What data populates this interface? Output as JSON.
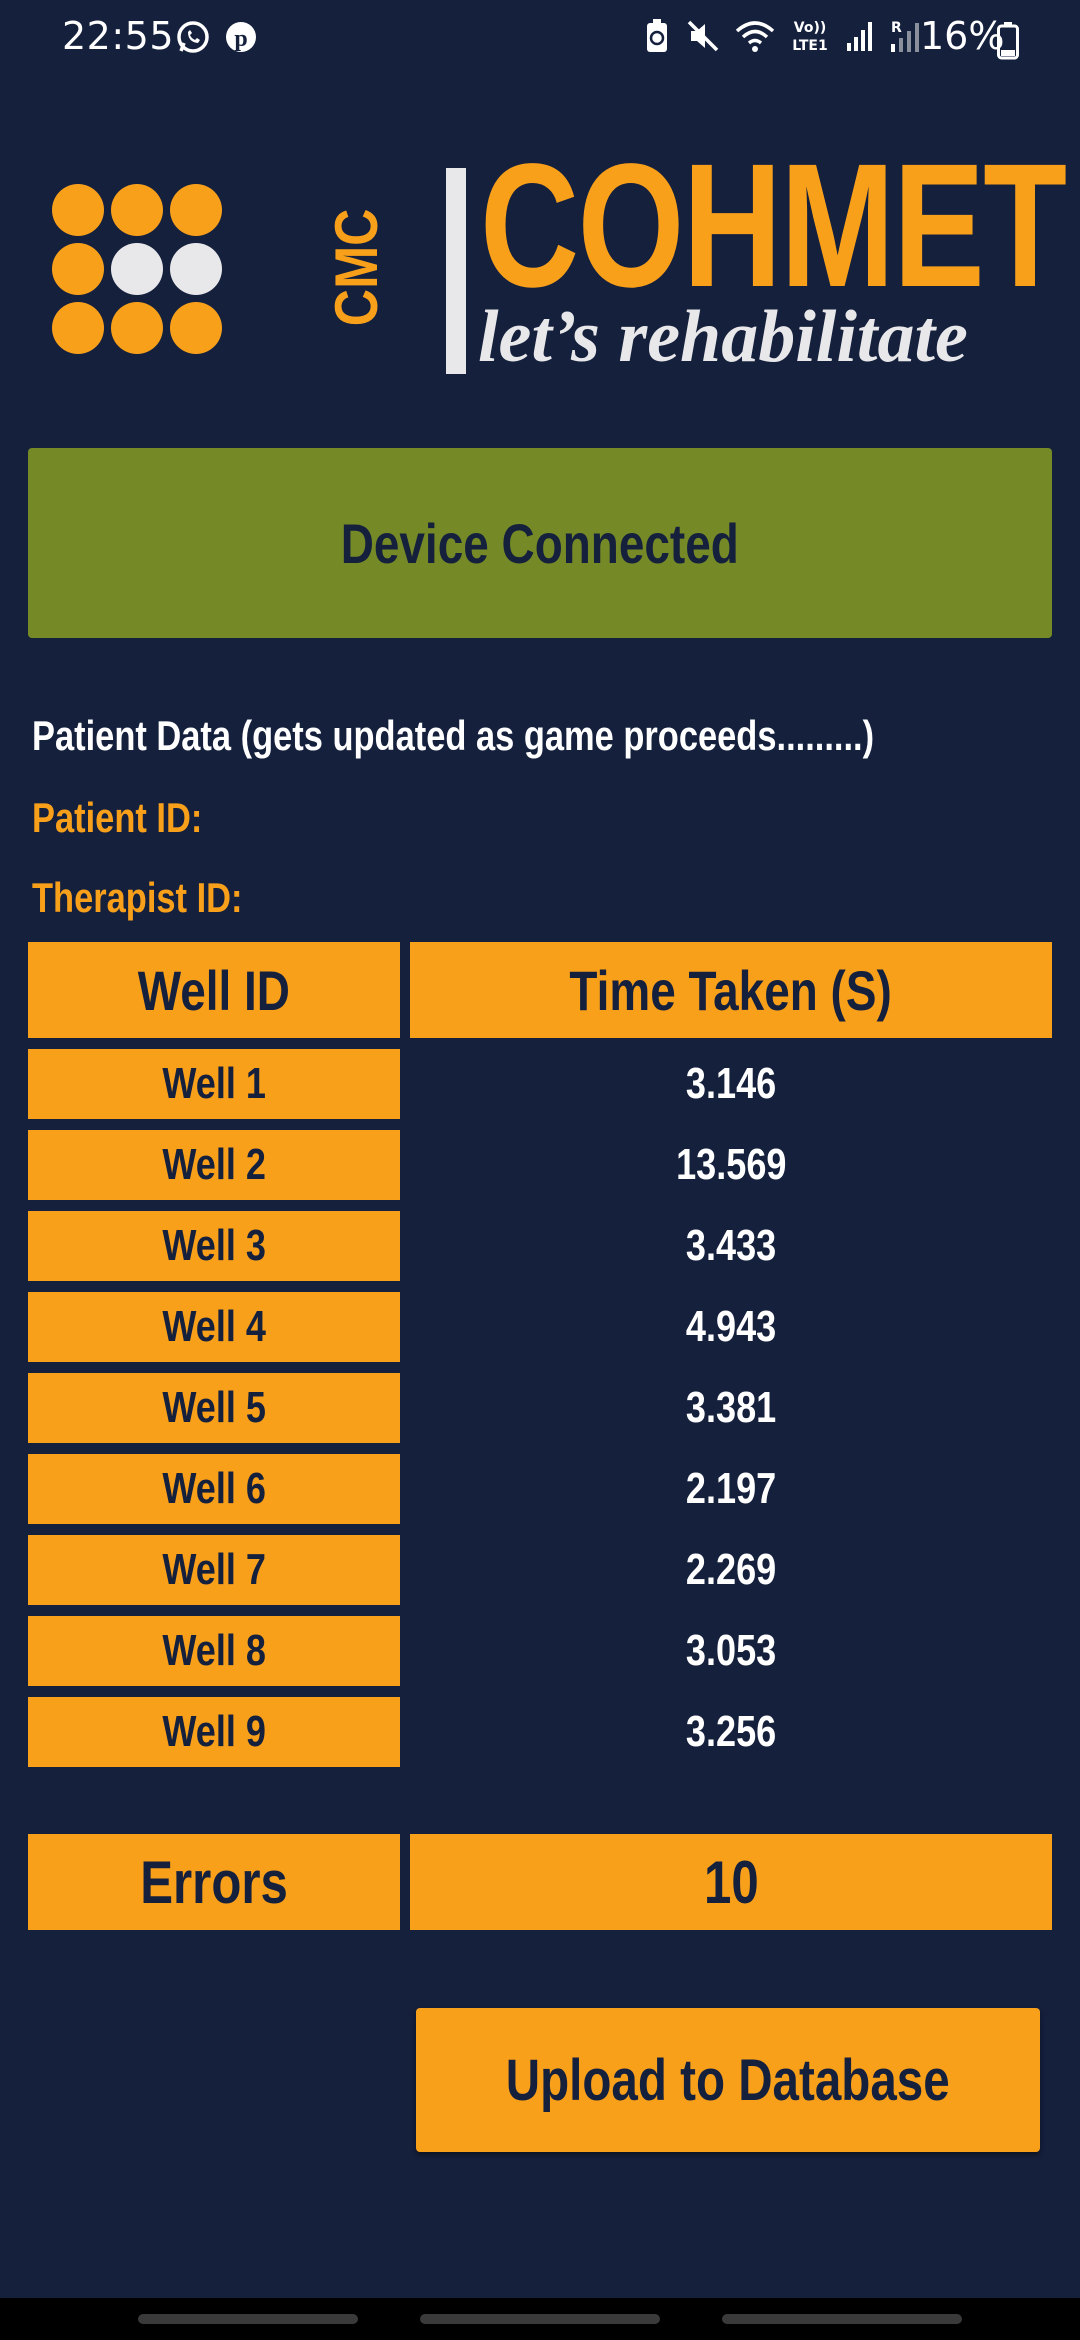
{
  "status_bar": {
    "time": "22:55",
    "battery": "16%",
    "icons": [
      "whatsapp-icon",
      "pinterest-icon",
      "recycle-battery-icon",
      "mute-icon",
      "wifi-icon",
      "volte-icon",
      "signal-icon",
      "signal-roaming-icon",
      "battery-icon"
    ],
    "volte_label_top": "Vo))",
    "volte_label_bottom": "LTE1",
    "roaming_label": "R"
  },
  "logo": {
    "cmc": "CMC",
    "name": "COHMET",
    "tagline": "let’s rehabilitate",
    "colors": {
      "orange": "#f9a01b",
      "grey": "#e8e8ea"
    }
  },
  "connection": {
    "status": "Device Connected",
    "color": "#758a26"
  },
  "patient": {
    "heading": "Patient Data (gets updated as game proceeds.........)",
    "patient_id_label": "Patient ID:",
    "therapist_id_label": "Therapist ID:"
  },
  "table": {
    "headers": [
      "Well ID",
      "Time Taken (S)"
    ],
    "rows": [
      {
        "well": "Well 1",
        "time": "3.146"
      },
      {
        "well": "Well 2",
        "time": "13.569"
      },
      {
        "well": "Well 3",
        "time": "3.433"
      },
      {
        "well": "Well 4",
        "time": "4.943"
      },
      {
        "well": "Well 5",
        "time": "3.381"
      },
      {
        "well": "Well 6",
        "time": "2.197"
      },
      {
        "well": "Well 7",
        "time": "2.269"
      },
      {
        "well": "Well 8",
        "time": "3.053"
      },
      {
        "well": "Well 9",
        "time": "3.256"
      }
    ]
  },
  "errors": {
    "label": "Errors",
    "value": "10"
  },
  "upload_button": "Upload to Database",
  "theme": {
    "background": "#15203d",
    "accent": "#f9a01b"
  }
}
